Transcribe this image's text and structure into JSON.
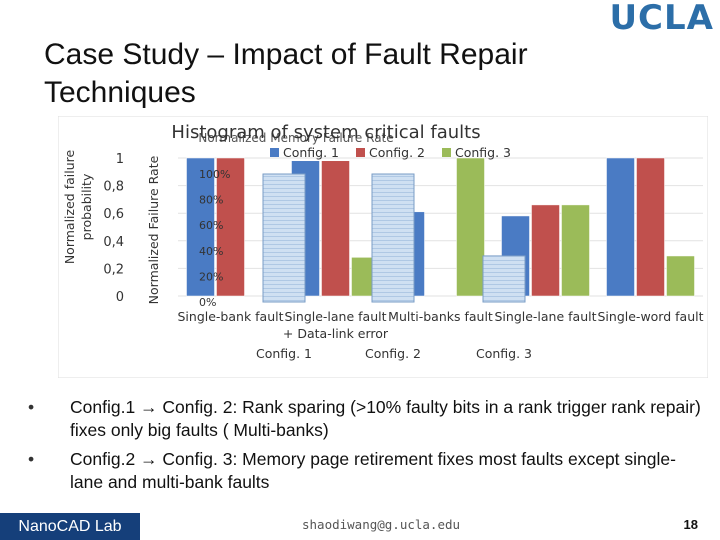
{
  "logo": "UCLA",
  "title": "Case Study – Impact of Fault Repair Techniques",
  "chart_data": {
    "type": "bar",
    "title": "Histogram of system critical faults",
    "ylabel": "Normalized failure probability",
    "ylim": [
      0,
      1
    ],
    "yticks": [
      "0",
      "0,2",
      "0,4",
      "0,6",
      "0,8",
      "1"
    ],
    "categories": [
      "Single-bank fault",
      "Single-lane fault\n+ Data-link error",
      "Multi-banks fault",
      "Single-lane fault",
      "Single-word fault"
    ],
    "series": [
      {
        "name": "Config. 1",
        "color": "#4a7bc4",
        "values": [
          1.0,
          0.98,
          0.61,
          0.58,
          1.0
        ]
      },
      {
        "name": "Config. 2",
        "color": "#c0504d",
        "values": [
          1.0,
          0.98,
          0.0,
          0.66,
          1.0
        ]
      },
      {
        "name": "Config. 3",
        "color": "#9bbb59",
        "values": [
          0.0,
          0.28,
          1.0,
          0.66,
          0.29
        ]
      }
    ],
    "overlay": {
      "title": "Normalized Memory Failure Rate",
      "ylabel": "Normalized Failure Rate",
      "yticks": [
        "0%",
        "20%",
        "40%",
        "60%",
        "80%",
        "100%"
      ],
      "xlabels": [
        "Config. 1",
        "Config. 2",
        "Config. 3"
      ],
      "values": [
        1.0,
        1.0,
        0.36
      ]
    }
  },
  "bullets": [
    "Config.1 → Config. 2: Rank sparing (>10% faulty bits in a rank trigger rank repair) fixes only big faults ( Multi-banks)",
    "Config.2 → Config. 3: Memory page retirement fixes most faults except single-lane and multi-bank faults"
  ],
  "footer": {
    "lab": "NanoCAD Lab",
    "email": "shaodiwang@g.ucla.edu",
    "page": "18"
  }
}
